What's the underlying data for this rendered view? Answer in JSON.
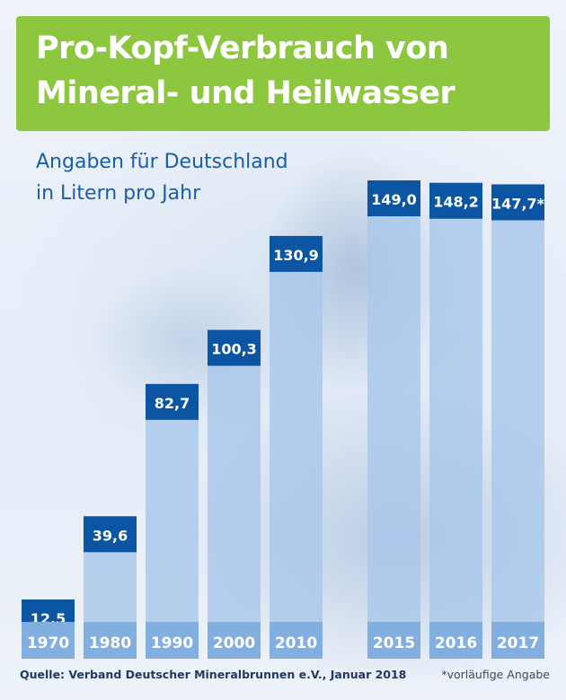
{
  "title": {
    "line1": "Pro-Kopf-Verbrauch von",
    "line2": "Mineral- und Heilwasser"
  },
  "subtitle": {
    "line1": "Angaben für Deutschland",
    "line2": "in Litern pro Jahr"
  },
  "footer": {
    "source": "Quelle: Verband Deutscher Mineralbrunnen e.V., Januar 2018",
    "note": "*vorläufige Angabe"
  },
  "colors": {
    "title_bg": "#8dc63f",
    "label_box": "#0b55a3",
    "bar_fill": "#a9c7ea",
    "year_box": "#82aee0",
    "text_blue": "#1a5ea8"
  },
  "chart_data": {
    "type": "bar",
    "categories": [
      "1970",
      "1980",
      "1990",
      "2000",
      "2010",
      "2015",
      "2016",
      "2017"
    ],
    "values": [
      12.5,
      39.6,
      82.7,
      100.3,
      130.9,
      149.0,
      148.2,
      147.7
    ],
    "value_labels": [
      "12,5",
      "39,6",
      "82,7",
      "100,3",
      "130,9",
      "149,0",
      "148,2",
      "147,7*"
    ],
    "ylim": [
      0,
      149.0
    ]
  }
}
